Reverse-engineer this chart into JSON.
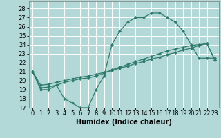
{
  "xlabel": "Humidex (Indice chaleur)",
  "bg_color": "#b2d8d8",
  "line_color": "#2d7a6a",
  "grid_color": "#ffffff",
  "xlim": [
    -0.5,
    23.5
  ],
  "ylim": [
    17,
    28.8
  ],
  "yticks": [
    17,
    18,
    19,
    20,
    21,
    22,
    23,
    24,
    25,
    26,
    27,
    28
  ],
  "xticks": [
    0,
    1,
    2,
    3,
    4,
    5,
    6,
    7,
    8,
    9,
    10,
    11,
    12,
    13,
    14,
    15,
    16,
    17,
    18,
    19,
    20,
    21,
    22,
    23
  ],
  "line1_x": [
    0,
    1,
    2,
    3,
    4,
    5,
    6,
    7,
    8,
    9,
    10,
    11,
    12,
    13,
    14,
    15,
    16,
    17,
    18,
    19,
    20,
    21,
    22,
    23
  ],
  "line1_y": [
    21,
    19,
    19,
    19.5,
    18,
    17.5,
    17,
    17,
    19,
    20.5,
    24,
    25.5,
    26.5,
    27,
    27,
    27.5,
    27.5,
    27,
    26.5,
    25.5,
    24,
    22.5,
    22.5,
    22.5
  ],
  "line2_x": [
    0,
    1,
    2,
    3,
    4,
    5,
    6,
    7,
    8,
    9,
    10,
    11,
    12,
    13,
    14,
    15,
    16,
    17,
    18,
    19,
    20,
    21,
    22,
    23
  ],
  "line2_y": [
    21,
    19.2,
    19.3,
    19.5,
    19.8,
    20.0,
    20.2,
    20.3,
    20.5,
    20.8,
    21.2,
    21.5,
    21.8,
    22.1,
    22.4,
    22.7,
    23.0,
    23.3,
    23.5,
    23.7,
    23.9,
    24.0,
    24.1,
    22.3
  ],
  "line3_x": [
    0,
    1,
    2,
    3,
    4,
    5,
    6,
    7,
    8,
    9,
    10,
    11,
    12,
    13,
    14,
    15,
    16,
    17,
    18,
    19,
    20,
    21,
    22,
    23
  ],
  "line3_y": [
    21,
    19.5,
    19.6,
    19.8,
    20.0,
    20.2,
    20.4,
    20.5,
    20.7,
    20.9,
    21.1,
    21.4,
    21.6,
    21.9,
    22.1,
    22.4,
    22.6,
    22.9,
    23.1,
    23.4,
    23.6,
    23.9,
    24.1,
    22.3
  ],
  "marker_size": 2.5,
  "font_size": 6,
  "lw": 0.9
}
